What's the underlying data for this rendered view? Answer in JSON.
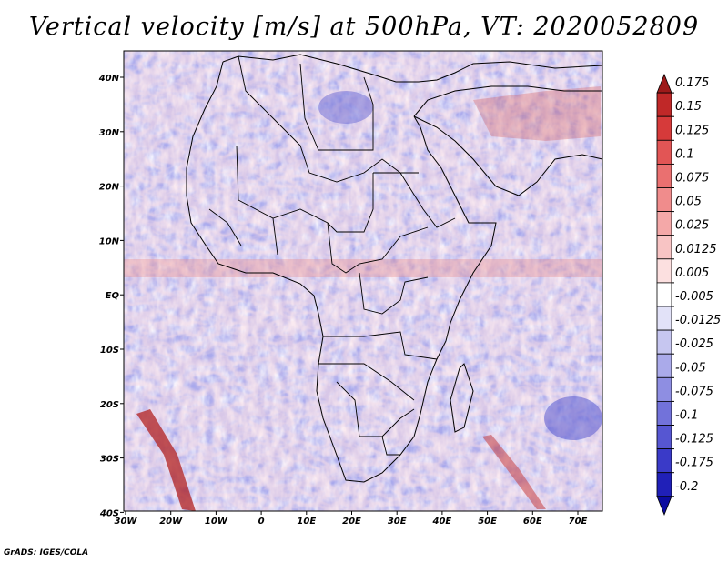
{
  "title": "Vertical velocity [m/s] at 500hPa, VT: 2020052809",
  "credit": "GrADS: IGES/COLA",
  "map": {
    "lon_ticks": [
      "30W",
      "20W",
      "10W",
      "0",
      "10E",
      "20E",
      "30E",
      "40E",
      "50E",
      "60E",
      "70E"
    ],
    "lat_ticks": [
      "40N",
      "30N",
      "20N",
      "10N",
      "EQ",
      "10S",
      "20S",
      "30S",
      "40S"
    ],
    "lon_range": [
      -30,
      75
    ],
    "lat_range": [
      -40,
      45
    ]
  },
  "colorbar": {
    "labels": [
      "0.175",
      "0.15",
      "0.125",
      "0.1",
      "0.075",
      "0.05",
      "0.025",
      "0.0125",
      "0.005",
      "-0.005",
      "-0.0125",
      "-0.025",
      "-0.05",
      "-0.075",
      "-0.1",
      "-0.125",
      "-0.175",
      "-0.2"
    ],
    "colors": [
      "#9e1a1a",
      "#c02828",
      "#d63a3a",
      "#e25555",
      "#ea7070",
      "#f08c8c",
      "#f4a8a8",
      "#f8c4c4",
      "#fce0e0",
      "#ffffff",
      "#e2e2f8",
      "#c6c6f0",
      "#aaaaea",
      "#8e8ee2",
      "#7272da",
      "#5656d2",
      "#3a3ac8",
      "#2020b8",
      "#0c0ca0"
    ]
  }
}
